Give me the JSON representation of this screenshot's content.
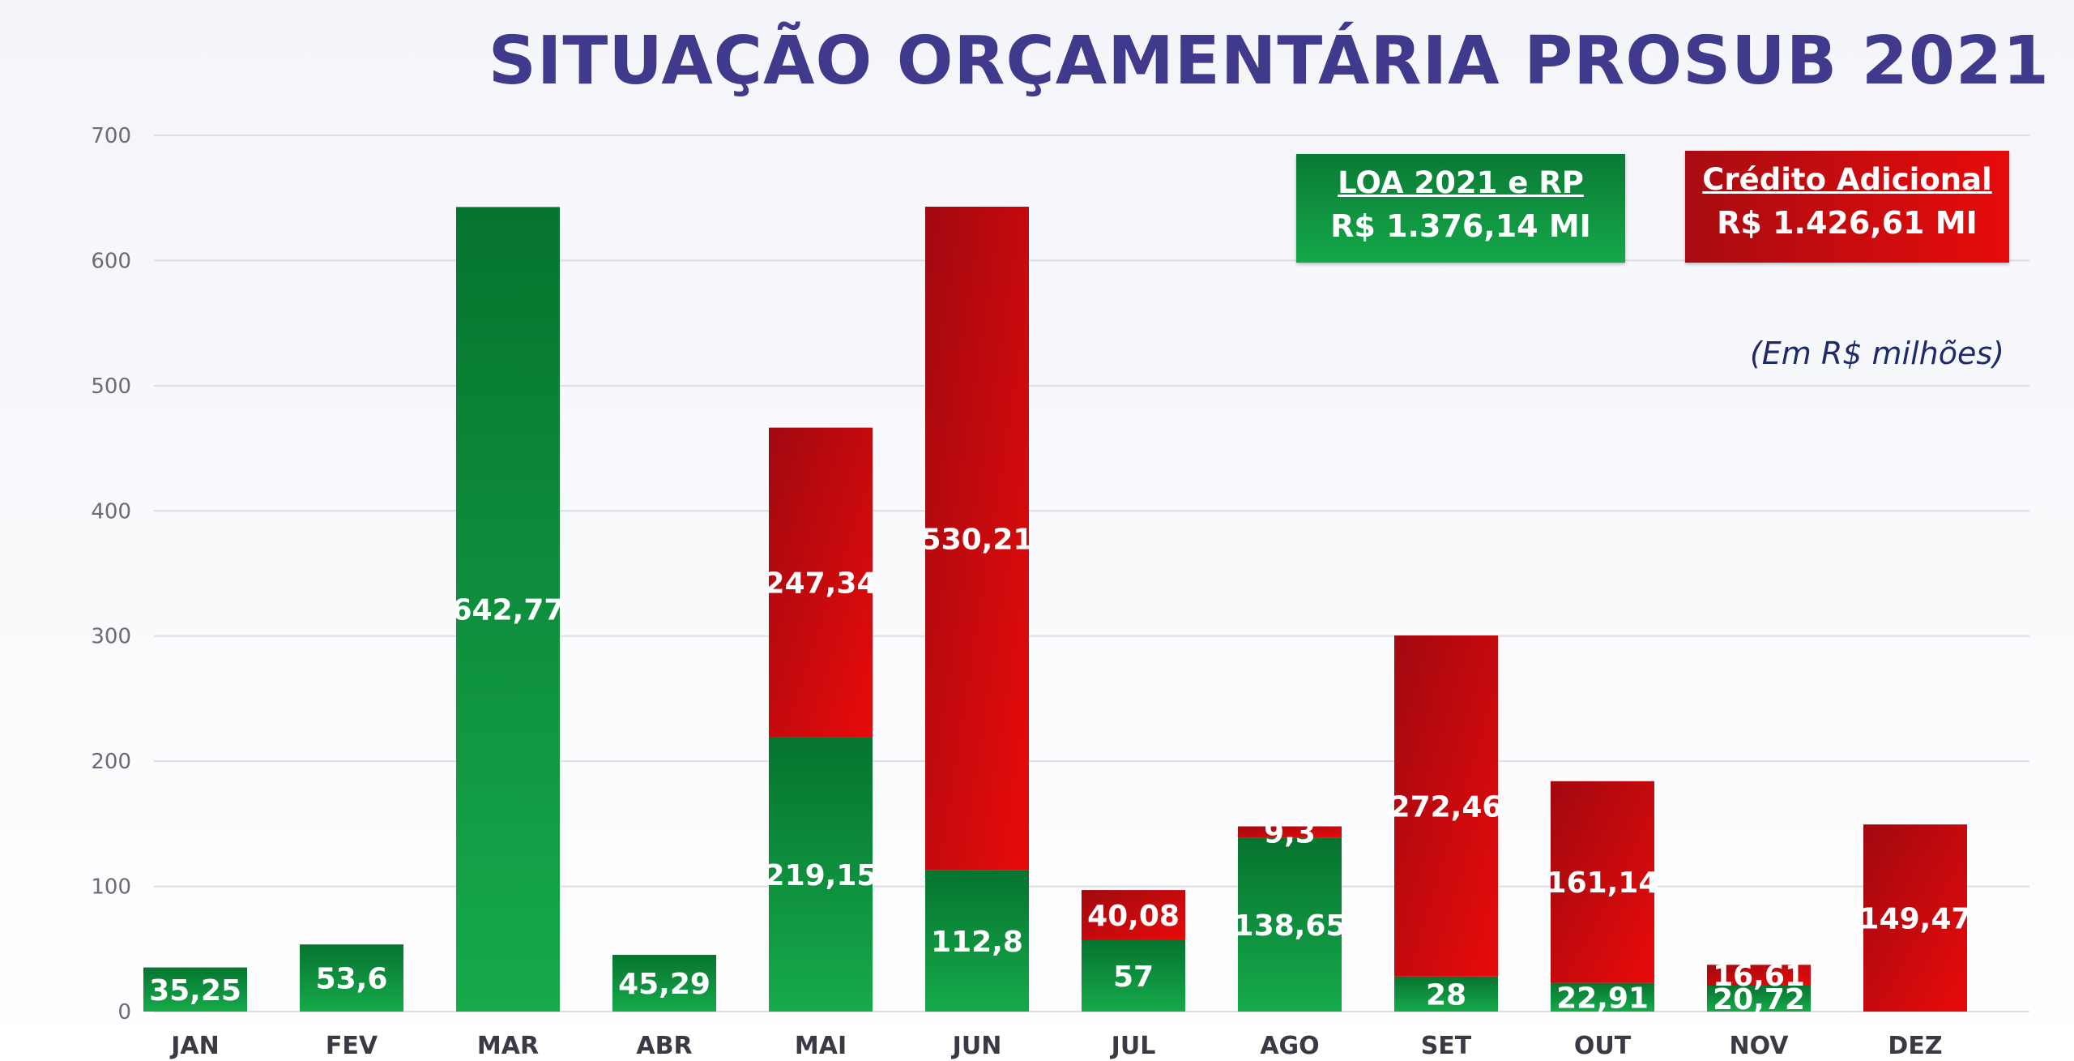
{
  "title": "SITUAÇÃO ORÇAMENTÁRIA PROSUB 2021",
  "units_note": "(Em R$ milhões)",
  "legend": {
    "loa": {
      "label": "LOA 2021 e RP",
      "value": "R$ 1.376,14 MI",
      "color": "#0e9a42"
    },
    "credito": {
      "label": "Crédito Adicional",
      "value": "R$ 1.426,61 MI",
      "color": "#e30b0b"
    }
  },
  "chart_data": {
    "type": "bar",
    "stacked": true,
    "categories": [
      "JAN",
      "FEV",
      "MAR",
      "ABR",
      "MAI",
      "JUN",
      "JUL",
      "AGO",
      "SET",
      "OUT",
      "NOV",
      "DEZ"
    ],
    "series": [
      {
        "name": "LOA 2021 e RP",
        "values": [
          35.25,
          53.6,
          642.77,
          45.29,
          219.15,
          112.8,
          57,
          138.65,
          28,
          22.91,
          20.72,
          0
        ],
        "labels": [
          "35,25",
          "53,6",
          "642,77",
          "45,29",
          "219,15",
          "112,8",
          "57",
          "138,65",
          "28",
          "22,91",
          "20,72",
          ""
        ]
      },
      {
        "name": "Crédito Adicional",
        "values": [
          0,
          0,
          0,
          0,
          247.34,
          530.21,
          40.08,
          9.3,
          272.46,
          161.14,
          16.61,
          149.47
        ],
        "labels": [
          "",
          "",
          "",
          "",
          "247,34",
          "530,21",
          "40,08",
          "9,3",
          "272,46",
          "161,14",
          "16,61",
          "149,47"
        ]
      }
    ],
    "yticks": [
      "0",
      "100",
      "200",
      "300",
      "400",
      "500",
      "600",
      "700"
    ],
    "ylim": [
      0,
      700
    ],
    "grid": true
  }
}
